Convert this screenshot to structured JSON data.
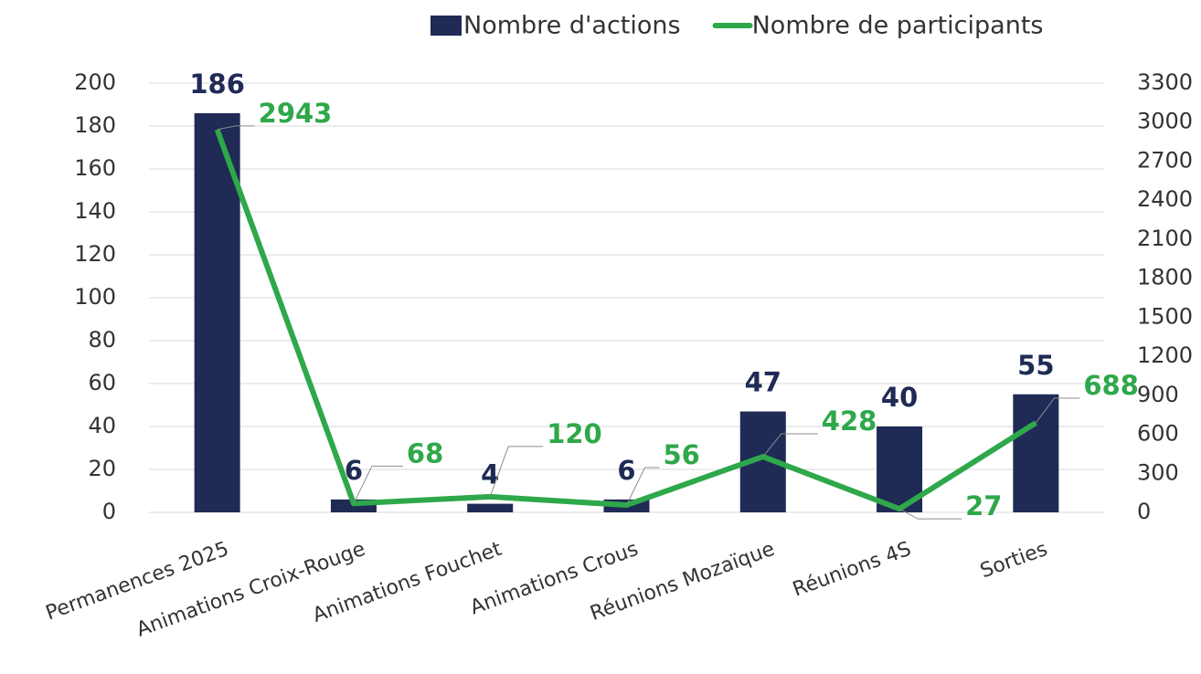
{
  "chart_data": {
    "type": "bar-line",
    "categories": [
      "Permanences 2025",
      "Animations Croix-Rouge",
      "Animations Fouchet",
      "Animations Crous",
      "Réunions Mozaïque",
      "Réunions 4S",
      "Sorties"
    ],
    "series": [
      {
        "name": "Nombre d'actions",
        "type": "bar",
        "color": "#1f2a55",
        "values": [
          186,
          6,
          4,
          6,
          47,
          40,
          55
        ]
      },
      {
        "name": "Nombre de participants",
        "type": "line",
        "axis": "y2",
        "color": "#2ea84a",
        "values": [
          2943,
          68,
          120,
          56,
          428,
          27,
          688
        ]
      }
    ],
    "ylim": [
      0,
      200
    ],
    "yticks": [
      0,
      20,
      40,
      60,
      80,
      100,
      120,
      140,
      160,
      180,
      200
    ],
    "y2lim": [
      0,
      3300
    ],
    "y2ticks": [
      0,
      300,
      600,
      900,
      1200,
      1500,
      1800,
      2100,
      2400,
      2700,
      3000,
      3300
    ],
    "grid": true,
    "legend": "top"
  }
}
